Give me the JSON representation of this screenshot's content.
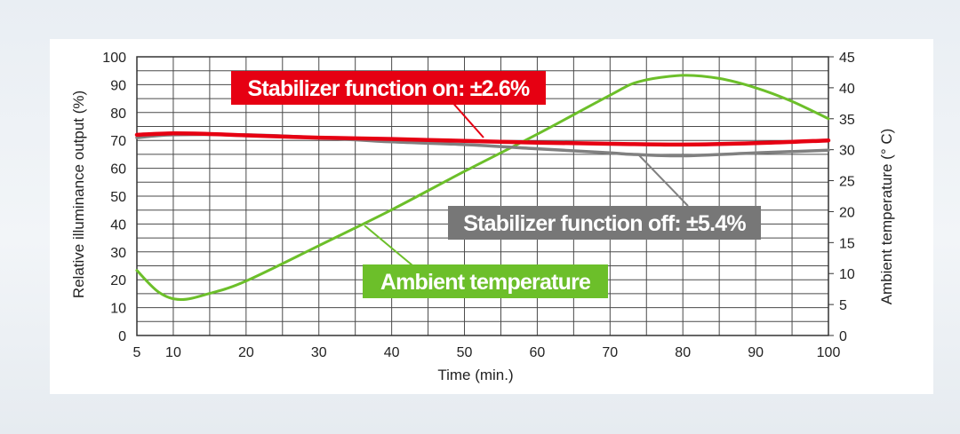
{
  "chart_data": {
    "type": "line",
    "title": "",
    "xlabel": "Time (min.)",
    "ylabel_left": "Relative illuminance output (%)",
    "ylabel_right": "Ambient temperature (° C)",
    "xlim": [
      5,
      100
    ],
    "ylim_left": [
      0,
      100
    ],
    "ylim_right": [
      0,
      45
    ],
    "grid": true,
    "x_ticks": [
      5,
      10,
      20,
      30,
      40,
      50,
      60,
      70,
      80,
      90,
      100
    ],
    "y_left_ticks": [
      0,
      10,
      20,
      30,
      40,
      50,
      60,
      70,
      80,
      90,
      100
    ],
    "y_right_ticks": [
      0,
      5,
      10,
      15,
      20,
      25,
      30,
      35,
      40,
      45
    ],
    "series": [
      {
        "name": "Stabilizer function on: ±2.6%",
        "axis": "left",
        "color": "#e60012",
        "x": [
          5,
          10,
          15,
          20,
          30,
          40,
          50,
          60,
          70,
          80,
          90,
          100
        ],
        "values": [
          72,
          72.5,
          72.3,
          71.8,
          71,
          70.5,
          69.8,
          69.2,
          68.8,
          68.5,
          69,
          70
        ]
      },
      {
        "name": "Stabilizer function off: ±5.4%",
        "axis": "left",
        "color": "#808080",
        "x": [
          5,
          10,
          20,
          30,
          40,
          50,
          60,
          70,
          73,
          80,
          90,
          100
        ],
        "values": [
          71,
          72,
          72,
          71,
          69.5,
          68.5,
          67,
          65.5,
          65,
          64.5,
          65.5,
          66.5
        ]
      },
      {
        "name": "Ambient temperature",
        "axis": "right",
        "color": "#6cbf2a",
        "x": [
          5,
          8,
          11,
          15,
          20,
          30,
          40,
          50,
          60,
          70,
          74,
          80,
          85,
          90,
          95,
          100
        ],
        "values": [
          10.5,
          7,
          5.8,
          6.8,
          8.8,
          14.5,
          20.3,
          26.5,
          32.5,
          38.8,
          41,
          42,
          41.5,
          40,
          37.8,
          35
        ]
      }
    ],
    "annotations": [
      {
        "text": "Stabilizer function on: ±2.6%",
        "color": "#e60012"
      },
      {
        "text": "Stabilizer function off: ±5.4%",
        "color": "#777777"
      },
      {
        "text": "Ambient temperature",
        "color": "#6cbf2a"
      }
    ]
  }
}
